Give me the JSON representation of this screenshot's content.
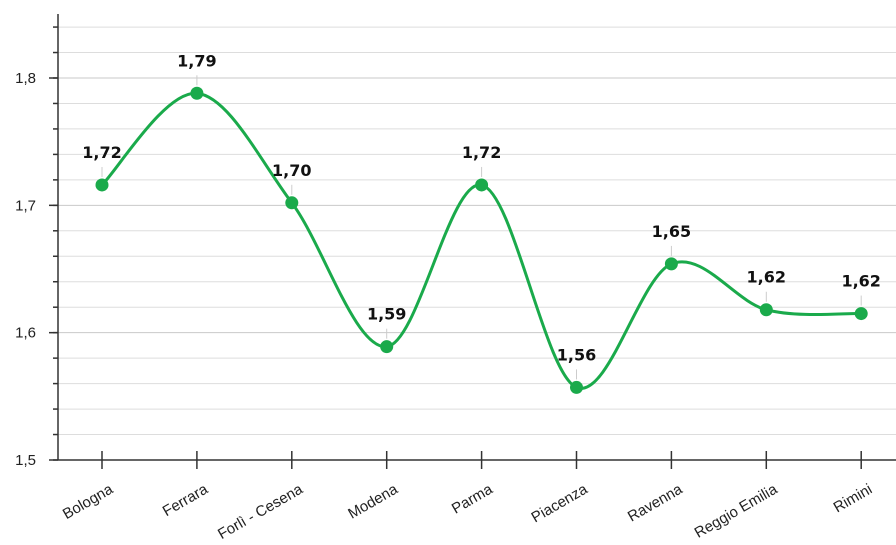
{
  "chart_data": {
    "type": "line",
    "title": "",
    "xlabel": "",
    "ylabel": "",
    "categories": [
      "Bologna",
      "Ferrara",
      "Forlì - Cesena",
      "Modena",
      "Parma",
      "Piacenza",
      "Ravenna",
      "Reggio Emilia",
      "Rimini"
    ],
    "series": [
      {
        "values": [
          1.716,
          1.788,
          1.702,
          1.589,
          1.716,
          1.557,
          1.654,
          1.618,
          1.615
        ],
        "labels": [
          "1,72",
          "1,79",
          "1,70",
          "1,59",
          "1,72",
          "1,56",
          "1,65",
          "1,62",
          "1,62"
        ]
      }
    ],
    "ylim": [
      1.5,
      1.85
    ],
    "yticks": [
      {
        "value": 1.5,
        "label": "1,5"
      },
      {
        "value": 1.6,
        "label": "1,6"
      },
      {
        "value": 1.7,
        "label": "1,7"
      },
      {
        "value": 1.8,
        "label": "1,8"
      }
    ],
    "minor_grid_step": 0.02,
    "grid": true,
    "line_color": "#1aaa4b",
    "grid_color": "#dddddd",
    "axis_color": "#333333"
  }
}
